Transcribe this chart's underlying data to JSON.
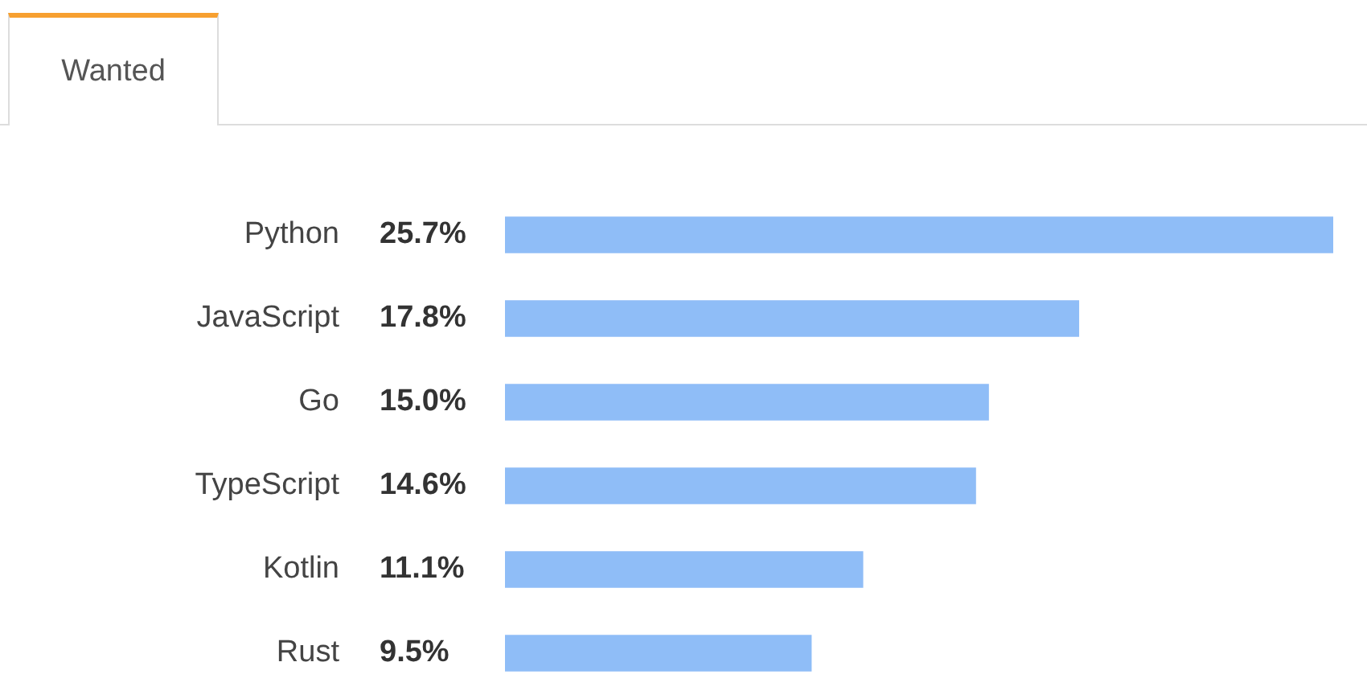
{
  "chart_data": {
    "type": "bar",
    "title": "Wanted",
    "orientation": "horizontal",
    "categories": [
      "Python",
      "JavaScript",
      "Go",
      "TypeScript",
      "Kotlin",
      "Rust"
    ],
    "values": [
      25.7,
      17.8,
      15.0,
      14.6,
      11.1,
      9.5
    ],
    "value_labels": [
      "25.7%",
      "17.8%",
      "15.0%",
      "14.6%",
      "11.1%",
      "9.5%"
    ],
    "color": "#8fbdf7"
  }
}
